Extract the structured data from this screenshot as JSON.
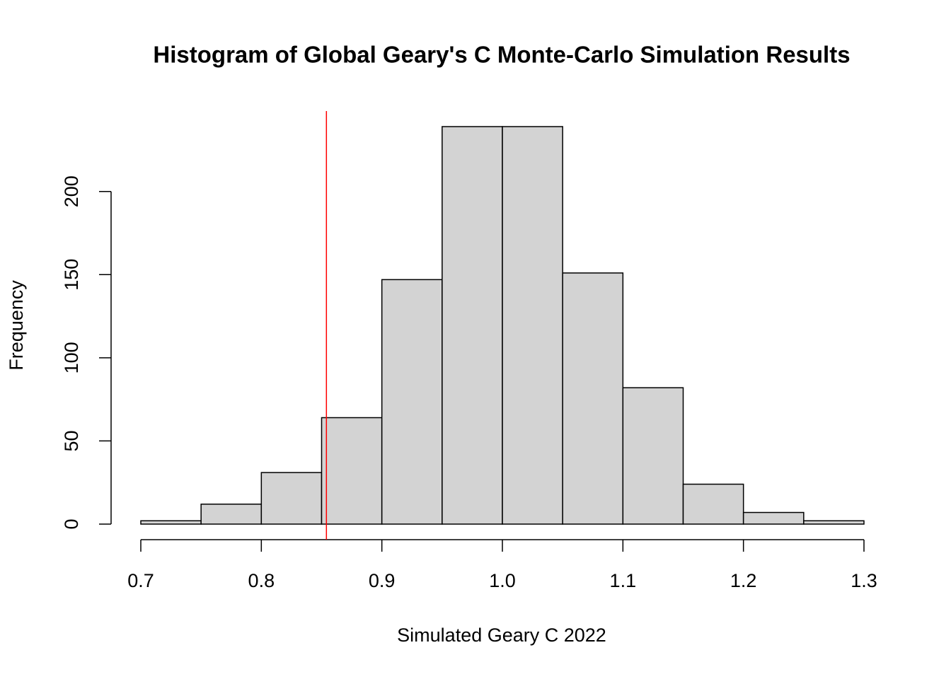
{
  "chart_data": {
    "type": "histogram",
    "title": "Histogram of Global Geary's C Monte-Carlo Simulation Results",
    "x_label": "Simulated Geary C 2022",
    "y_label": "Frequency",
    "bins": [
      0.7,
      0.75,
      0.8,
      0.85,
      0.9,
      0.95,
      1.0,
      1.05,
      1.1,
      1.15,
      1.2,
      1.25,
      1.3
    ],
    "counts": [
      2,
      12,
      31,
      64,
      147,
      239,
      239,
      151,
      82,
      24,
      7,
      2
    ],
    "color": "#d3d3d3",
    "vline": 0.854,
    "vline_color": "#ff0000",
    "xlim": [
      0.7,
      1.3
    ],
    "xticks": [
      0.7,
      0.8,
      0.9,
      {
        "value": 1,
        "label": "1.0"
      },
      1.1,
      1.2,
      1.3
    ],
    "ylim": [
      0,
      239
    ],
    "yticks": [
      0,
      50,
      100,
      150,
      200
    ]
  }
}
